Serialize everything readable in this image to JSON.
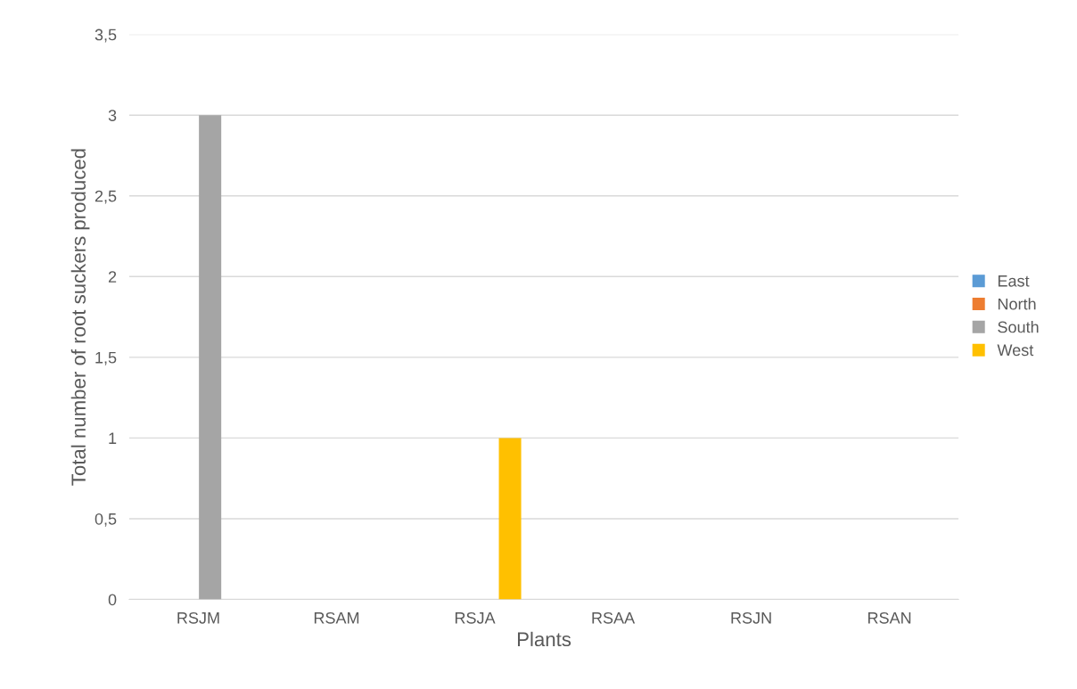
{
  "chart_data": {
    "type": "bar",
    "xlabel": "Plants",
    "ylabel": "Total number of root suckers produced",
    "categories": [
      "RSJM",
      "RSAM",
      "RSJA",
      "RSAA",
      "RSJN",
      "RSAN"
    ],
    "series": [
      {
        "name": "East",
        "color": "#5b9bd5",
        "values": [
          0,
          0,
          0,
          0,
          0,
          0
        ]
      },
      {
        "name": "North",
        "color": "#ed7d31",
        "values": [
          0,
          0,
          0,
          0,
          0,
          0
        ]
      },
      {
        "name": "South",
        "color": "#a5a5a5",
        "values": [
          3,
          0,
          0,
          0,
          0,
          0
        ]
      },
      {
        "name": "West",
        "color": "#ffc000",
        "values": [
          0,
          0,
          1,
          0,
          0,
          0
        ]
      }
    ],
    "ylim": [
      0,
      3.5
    ],
    "yticks": [
      0,
      {
        "value": 0.5,
        "label": "0,5"
      },
      1,
      {
        "value": 1.5,
        "label": "1,5"
      },
      2,
      {
        "value": 2.5,
        "label": "2,5"
      },
      3,
      {
        "value": 3.5,
        "label": "3,5"
      }
    ],
    "grid": "y",
    "legend": "right"
  }
}
